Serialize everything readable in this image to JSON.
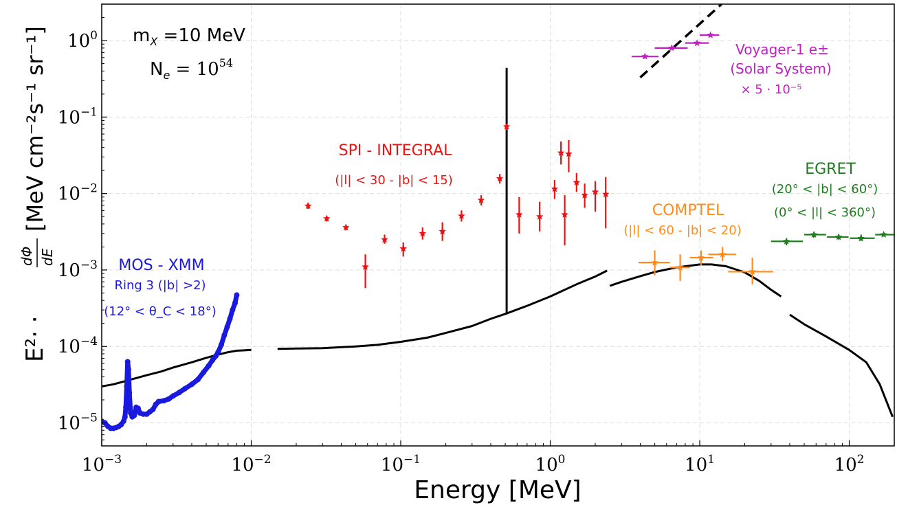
{
  "chart_data": {
    "type": "scatter",
    "xlabel": "Energy [MeV]",
    "ylabel": "E²· · dΦ/dE [MeV cm⁻² s⁻¹ sr⁻¹]",
    "ylabel_parts": {
      "e2": "E²· ·",
      "num": "dΦ",
      "den": "dE",
      "units": "[MeV cm⁻²s⁻¹ sr⁻¹]"
    },
    "xscale": "log",
    "yscale": "log",
    "xlim": [
      0.001,
      200
    ],
    "ylim": [
      5e-06,
      3
    ],
    "grid": true,
    "x_ticks": [
      {
        "value": 0.001,
        "mant": "10",
        "exp": "−3"
      },
      {
        "value": 0.01,
        "mant": "10",
        "exp": "−2"
      },
      {
        "value": 0.1,
        "mant": "10",
        "exp": "−1"
      },
      {
        "value": 1,
        "mant": "10",
        "exp": "0"
      },
      {
        "value": 10,
        "mant": "10",
        "exp": "1"
      },
      {
        "value": 100,
        "mant": "10",
        "exp": "2"
      }
    ],
    "y_ticks": [
      {
        "value": 1e-05,
        "mant": "10",
        "exp": "−5"
      },
      {
        "value": 0.0001,
        "mant": "10",
        "exp": "−4"
      },
      {
        "value": 0.001,
        "mant": "10",
        "exp": "−3"
      },
      {
        "value": 0.01,
        "mant": "10",
        "exp": "−2"
      },
      {
        "value": 0.1,
        "mant": "10",
        "exp": "−1"
      },
      {
        "value": 1,
        "mant": "10",
        "exp": "0"
      }
    ],
    "annotations": {
      "mass": {
        "prefix": "m",
        "sub": "X",
        "text": " =10 MeV"
      },
      "ne": {
        "prefix": "N",
        "sub": "e",
        "mid": " = 10",
        "exp": "54"
      },
      "spi": {
        "title": "SPI - INTEGRAL",
        "region": "(|l| < 30 - |b| < 15)",
        "color": "#ee1111"
      },
      "comptel": {
        "title": "COMPTEL",
        "region": "(|l| < 60 - |b| < 20)",
        "color": "#ff8c1a"
      },
      "egret": {
        "title": "EGRET",
        "region1": "(20° < |b| < 60°)",
        "region2": "(0° < |l| < 360°)",
        "color": "#1e7d1e"
      },
      "mos": {
        "title": "MOS - XMM",
        "ring": "Ring 3 (|b| >2)",
        "region": "(12° < θ_C < 18°)",
        "color": "#1a1adf"
      },
      "voyager": {
        "title": "Voyager-1 e±",
        "region": "(Solar System)",
        "scale": "× 5 · 10⁻⁵",
        "color": "#c020c0"
      }
    },
    "series": [
      {
        "kind": "model_line",
        "color": "#000000",
        "segments": [
          [
            [
              0.001,
              3e-05
            ],
            [
              0.0012,
              3.2e-05
            ],
            [
              0.0015,
              3.6e-05
            ],
            [
              0.002,
              4.2e-05
            ],
            [
              0.0025,
              4.7e-05
            ],
            [
              0.003,
              5.3e-05
            ],
            [
              0.004,
              6.2e-05
            ],
            [
              0.005,
              7.1e-05
            ],
            [
              0.006,
              7.8e-05
            ],
            [
              0.007,
              8.4e-05
            ],
            [
              0.008,
              8.8e-05
            ],
            [
              0.009,
              8.9e-05
            ],
            [
              0.01,
              9e-05
            ]
          ],
          [
            [
              0.015,
              9.3e-05
            ],
            [
              0.02,
              9.4e-05
            ],
            [
              0.03,
              9.5e-05
            ],
            [
              0.05,
              0.0001
            ],
            [
              0.07,
              0.000105
            ],
            [
              0.1,
              0.000115
            ],
            [
              0.15,
              0.00013
            ],
            [
              0.2,
              0.00015
            ],
            [
              0.3,
              0.000185
            ],
            [
              0.4,
              0.00023
            ],
            [
              0.511,
              0.00027
            ],
            [
              0.7,
              0.00034
            ],
            [
              1.0,
              0.00045
            ],
            [
              1.5,
              0.00065
            ],
            [
              2.0,
              0.00082
            ],
            [
              2.4,
              0.00098
            ]
          ],
          [
            [
              2.5,
              0.00062
            ],
            [
              3.0,
              0.0007
            ],
            [
              4.0,
              0.00083
            ],
            [
              5.0,
              0.00094
            ],
            [
              7.0,
              0.00108
            ],
            [
              10,
              0.00118
            ],
            [
              12,
              0.00118
            ],
            [
              15,
              0.00112
            ],
            [
              20,
              0.00093
            ],
            [
              25,
              0.00072
            ],
            [
              30,
              0.00055
            ],
            [
              35,
              0.00045
            ]
          ],
          [
            [
              40,
              0.00026
            ],
            [
              50,
              0.000195
            ],
            [
              70,
              0.000135
            ],
            [
              100,
              9e-05
            ],
            [
              130,
              6.2e-05
            ],
            [
              160,
              3.2e-05
            ],
            [
              195,
              1.2e-05
            ]
          ]
        ],
        "line_511": {
          "x": 0.511,
          "y_low": 0.00027,
          "y_high": 0.44
        }
      },
      {
        "kind": "dashed_line",
        "color": "#000000",
        "points": [
          [
            4.0,
            0.33
          ],
          [
            14.0,
            3.0
          ]
        ]
      },
      {
        "name": "SPI - INTEGRAL",
        "kind": "errorbars",
        "color": "#ee1111",
        "points": [
          {
            "x": 0.024,
            "y": 0.0069,
            "ylo": 0.0063,
            "yhi": 0.0075
          },
          {
            "x": 0.032,
            "y": 0.0047,
            "ylo": 0.0043,
            "yhi": 0.0051
          },
          {
            "x": 0.043,
            "y": 0.0036,
            "ylo": 0.0033,
            "yhi": 0.0039
          },
          {
            "x": 0.058,
            "y": 0.0011,
            "ylo": 0.00058,
            "yhi": 0.0016
          },
          {
            "x": 0.078,
            "y": 0.0025,
            "ylo": 0.0022,
            "yhi": 0.0029
          },
          {
            "x": 0.104,
            "y": 0.0019,
            "ylo": 0.0015,
            "yhi": 0.0023
          },
          {
            "x": 0.14,
            "y": 0.003,
            "ylo": 0.0025,
            "yhi": 0.0036
          },
          {
            "x": 0.19,
            "y": 0.0032,
            "ylo": 0.0024,
            "yhi": 0.0042
          },
          {
            "x": 0.255,
            "y": 0.0051,
            "ylo": 0.0043,
            "yhi": 0.006
          },
          {
            "x": 0.345,
            "y": 0.0082,
            "ylo": 0.007,
            "yhi": 0.0095
          },
          {
            "x": 0.46,
            "y": 0.0157,
            "ylo": 0.0135,
            "yhi": 0.018
          },
          {
            "x": 0.511,
            "y": 0.075,
            "ylo": 0.068,
            "yhi": 0.082
          },
          {
            "x": 0.62,
            "y": 0.0053,
            "ylo": 0.003,
            "yhi": 0.009
          },
          {
            "x": 0.85,
            "y": 0.005,
            "ylo": 0.0032,
            "yhi": 0.0078
          },
          {
            "x": 1.07,
            "y": 0.0115,
            "ylo": 0.0085,
            "yhi": 0.015
          },
          {
            "x": 1.18,
            "y": 0.034,
            "ylo": 0.024,
            "yhi": 0.048
          },
          {
            "x": 1.25,
            "y": 0.0053,
            "ylo": 0.0021,
            "yhi": 0.0095
          },
          {
            "x": 1.33,
            "y": 0.033,
            "ylo": 0.019,
            "yhi": 0.05
          },
          {
            "x": 1.5,
            "y": 0.014,
            "ylo": 0.0105,
            "yhi": 0.0185
          },
          {
            "x": 1.7,
            "y": 0.0095,
            "ylo": 0.0065,
            "yhi": 0.0135
          },
          {
            "x": 2.0,
            "y": 0.0105,
            "ylo": 0.0058,
            "yhi": 0.0145
          },
          {
            "x": 2.35,
            "y": 0.0098,
            "ylo": 0.0035,
            "yhi": 0.0165
          }
        ]
      },
      {
        "name": "COMPTEL",
        "kind": "errorbars",
        "color": "#ff8c1a",
        "points": [
          {
            "x": 5.0,
            "y": 0.00125,
            "ylo": 0.00085,
            "yhi": 0.0018,
            "xlo": 3.9,
            "xhi": 6.3
          },
          {
            "x": 7.4,
            "y": 0.00108,
            "ylo": 0.00072,
            "yhi": 0.0016,
            "xlo": 6.3,
            "xhi": 8.6
          },
          {
            "x": 10.2,
            "y": 0.00145,
            "ylo": 0.00115,
            "yhi": 0.0018,
            "xlo": 8.6,
            "xhi": 12.3
          },
          {
            "x": 14.2,
            "y": 0.0016,
            "ylo": 0.0013,
            "yhi": 0.002,
            "xlo": 11.4,
            "xhi": 17.5
          },
          {
            "x": 22.5,
            "y": 0.00095,
            "ylo": 0.00065,
            "yhi": 0.00145,
            "xlo": 15.5,
            "xhi": 31.0
          }
        ]
      },
      {
        "name": "EGRET",
        "kind": "errorbars",
        "color": "#1e7d1e",
        "points": [
          {
            "x": 38,
            "y": 0.00237,
            "ylo": 0.0021,
            "yhi": 0.0026,
            "xlo": 30,
            "xhi": 49
          },
          {
            "x": 58,
            "y": 0.0029,
            "ylo": 0.00265,
            "yhi": 0.0031,
            "xlo": 50,
            "xhi": 70
          },
          {
            "x": 85,
            "y": 0.0027,
            "ylo": 0.0025,
            "yhi": 0.0029,
            "xlo": 71,
            "xhi": 99
          },
          {
            "x": 120,
            "y": 0.0026,
            "ylo": 0.0024,
            "yhi": 0.0029,
            "xlo": 101,
            "xhi": 148
          },
          {
            "x": 170,
            "y": 0.0029,
            "ylo": 0.0029,
            "yhi": 0.0029,
            "xlo": 149,
            "xhi": 200
          }
        ]
      },
      {
        "name": "Voyager-1",
        "kind": "errorbars",
        "color": "#c020c0",
        "points": [
          {
            "x": 4.3,
            "y": 0.62,
            "ylo": 0.62,
            "yhi": 0.62,
            "xlo": 3.5,
            "xhi": 5.3
          },
          {
            "x": 6.5,
            "y": 0.8,
            "ylo": 0.8,
            "yhi": 0.8,
            "xlo": 5.0,
            "xhi": 8.3
          },
          {
            "x": 9.6,
            "y": 0.93,
            "ylo": 0.93,
            "yhi": 0.93,
            "xlo": 8.0,
            "xhi": 11.5
          },
          {
            "x": 11.8,
            "y": 1.18,
            "ylo": 1.18,
            "yhi": 1.18,
            "xlo": 10.0,
            "xhi": 13.5
          }
        ]
      },
      {
        "name": "MOS - XMM",
        "kind": "dense_dots",
        "color": "#1a1adf",
        "points": [
          [
            0.001,
            1.05e-05
          ],
          [
            0.00105,
            1e-05
          ],
          [
            0.0011,
            9e-06
          ],
          [
            0.00115,
            8.5e-06
          ],
          [
            0.0012,
            8.5e-06
          ],
          [
            0.00125,
            8.7e-06
          ],
          [
            0.0013,
            9e-06
          ],
          [
            0.00135,
            9.5e-06
          ],
          [
            0.0014,
            1.05e-05
          ],
          [
            0.00143,
            1.2e-05
          ],
          [
            0.00145,
            1.6e-05
          ],
          [
            0.00147,
            3e-05
          ],
          [
            0.00149,
            6.3e-05
          ],
          [
            0.00151,
            5e-05
          ],
          [
            0.00153,
            2.5e-05
          ],
          [
            0.00156,
            1.35e-05
          ],
          [
            0.0016,
            1.2e-05
          ],
          [
            0.00165,
            1.25e-05
          ],
          [
            0.0017,
            1.6e-05
          ],
          [
            0.00175,
            1.55e-05
          ],
          [
            0.0018,
            1.35e-05
          ],
          [
            0.0019,
            1.3e-05
          ],
          [
            0.002,
            1.3e-05
          ],
          [
            0.0021,
            1.4e-05
          ],
          [
            0.0022,
            1.5e-05
          ],
          [
            0.0023,
            1.75e-05
          ],
          [
            0.0024,
            1.9e-05
          ],
          [
            0.0026,
            1.95e-05
          ],
          [
            0.0028,
            2.05e-05
          ],
          [
            0.003,
            2.25e-05
          ],
          [
            0.0033,
            2.5e-05
          ],
          [
            0.0036,
            2.8e-05
          ],
          [
            0.004,
            3.2e-05
          ],
          [
            0.0044,
            3.7e-05
          ],
          [
            0.0048,
            4.6e-05
          ],
          [
            0.0052,
            5.6e-05
          ],
          [
            0.0055,
            6.6e-05
          ],
          [
            0.0058,
            7.5e-05
          ],
          [
            0.006,
            8.4e-05
          ],
          [
            0.0063,
            0.000105
          ],
          [
            0.0066,
            0.00014
          ],
          [
            0.0069,
            0.00018
          ],
          [
            0.0072,
            0.00023
          ],
          [
            0.0075,
            0.0003
          ],
          [
            0.0078,
            0.00037
          ],
          [
            0.008,
            0.00047
          ]
        ]
      }
    ]
  }
}
